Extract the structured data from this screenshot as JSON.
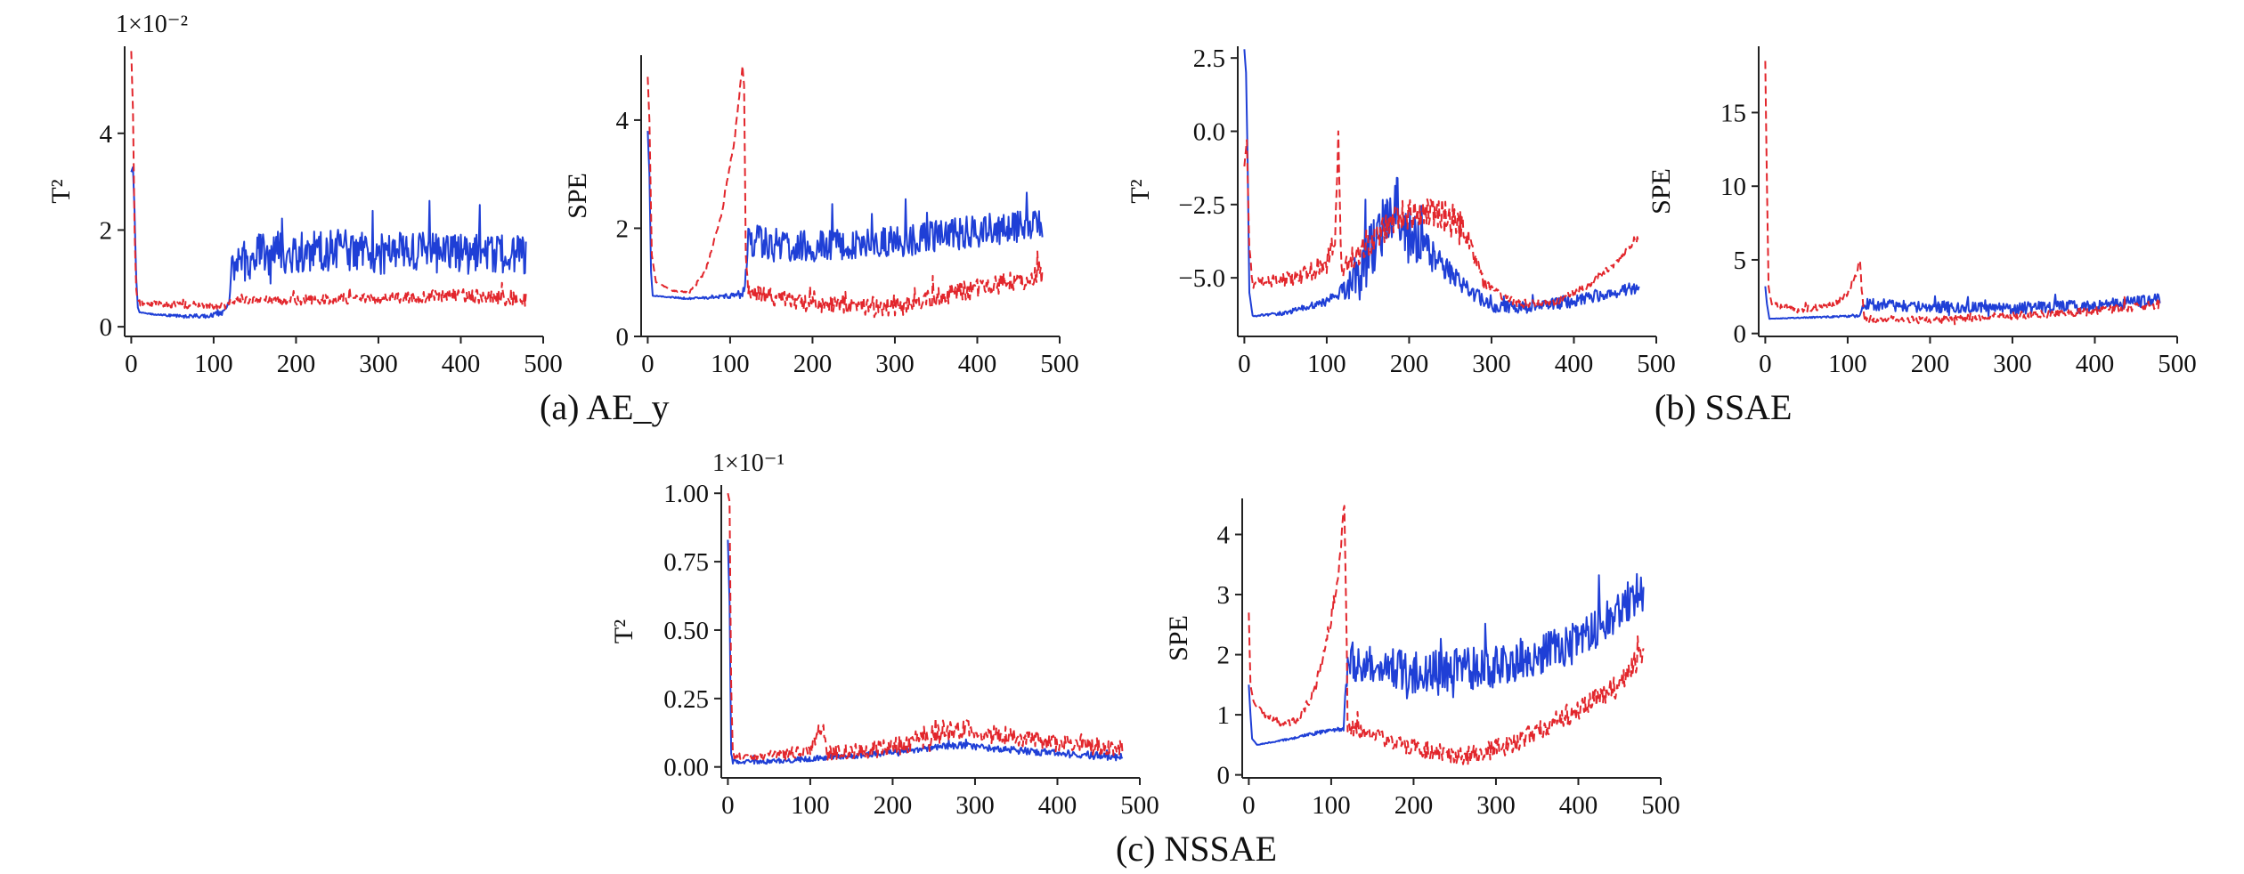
{
  "colors": {
    "normal": "#1f3fd6",
    "fault": "#e2262c",
    "axis": "#222222"
  },
  "captions": {
    "a": "(a) AE_y",
    "b": "(b) SSAE",
    "c": "(c) NSSAE"
  },
  "chart_data": [
    {
      "type": "line",
      "panel": "a",
      "ylabel": "T²",
      "multiplier": "1×10⁻²",
      "xlim": [
        -8,
        500
      ],
      "ylim": [
        -0.2,
        5.8
      ],
      "xticks": [
        0,
        100,
        200,
        300,
        400,
        500
      ],
      "yticks": [
        0,
        2,
        4
      ],
      "series": [
        {
          "style": "solid",
          "color": "normal",
          "n": 480,
          "points": [
            [
              0,
              3.2
            ],
            [
              2,
              3.3
            ],
            [
              4,
              2.4
            ],
            [
              6,
              1.0
            ],
            [
              8,
              0.4
            ],
            [
              10,
              0.3
            ],
            [
              30,
              0.25
            ],
            [
              60,
              0.22
            ],
            [
              90,
              0.22
            ],
            [
              112,
              0.3
            ],
            [
              118,
              0.5
            ],
            [
              122,
              1.2
            ],
            [
              150,
              1.5
            ],
            [
              200,
              1.55
            ],
            [
              250,
              1.6
            ],
            [
              300,
              1.5
            ],
            [
              350,
              1.55
            ],
            [
              400,
              1.5
            ],
            [
              480,
              1.5
            ]
          ],
          "noise": [
            [
              0,
              0
            ],
            [
              118,
              0.06
            ],
            [
              122,
              0.45
            ],
            [
              480,
              0.4
            ]
          ]
        },
        {
          "style": "dashed",
          "color": "fault",
          "n": 480,
          "points": [
            [
              0,
              5.7
            ],
            [
              2,
              4.5
            ],
            [
              4,
              2.0
            ],
            [
              6,
              0.8
            ],
            [
              8,
              0.5
            ],
            [
              60,
              0.45
            ],
            [
              110,
              0.45
            ],
            [
              120,
              0.55
            ],
            [
              200,
              0.55
            ],
            [
              300,
              0.6
            ],
            [
              400,
              0.65
            ],
            [
              480,
              0.55
            ]
          ],
          "noise": [
            [
              0,
              0
            ],
            [
              8,
              0.06
            ],
            [
              480,
              0.15
            ]
          ]
        }
      ]
    },
    {
      "type": "line",
      "panel": "a",
      "ylabel": "SPE",
      "xlim": [
        -8,
        500
      ],
      "ylim": [
        0,
        5.2
      ],
      "xticks": [
        0,
        100,
        200,
        300,
        400,
        500
      ],
      "yticks": [
        0,
        2,
        4
      ],
      "series": [
        {
          "style": "solid",
          "color": "normal",
          "n": 480,
          "points": [
            [
              0,
              3.8
            ],
            [
              2,
              3.0
            ],
            [
              4,
              1.2
            ],
            [
              6,
              0.75
            ],
            [
              50,
              0.7
            ],
            [
              100,
              0.75
            ],
            [
              115,
              0.75
            ],
            [
              118,
              1.0
            ],
            [
              122,
              1.8
            ],
            [
              150,
              1.7
            ],
            [
              200,
              1.65
            ],
            [
              300,
              1.75
            ],
            [
              400,
              1.95
            ],
            [
              480,
              2.1
            ]
          ],
          "noise": [
            [
              0,
              0
            ],
            [
              115,
              0.05
            ],
            [
              122,
              0.3
            ],
            [
              480,
              0.3
            ]
          ]
        },
        {
          "style": "dashed",
          "color": "fault",
          "n": 480,
          "points": [
            [
              0,
              4.8
            ],
            [
              2,
              4.0
            ],
            [
              5,
              1.5
            ],
            [
              10,
              1.0
            ],
            [
              30,
              0.85
            ],
            [
              50,
              0.8
            ],
            [
              70,
              1.2
            ],
            [
              90,
              2.3
            ],
            [
              105,
              3.6
            ],
            [
              115,
              5.0
            ],
            [
              117,
              4.6
            ],
            [
              119,
              1.5
            ],
            [
              122,
              0.8
            ],
            [
              200,
              0.6
            ],
            [
              300,
              0.55
            ],
            [
              400,
              0.9
            ],
            [
              480,
              1.1
            ]
          ],
          "noise": [
            [
              0,
              0
            ],
            [
              118,
              0.05
            ],
            [
              122,
              0.15
            ],
            [
              480,
              0.2
            ]
          ]
        }
      ]
    },
    {
      "type": "line",
      "panel": "b",
      "ylabel": "T²",
      "xlim": [
        -8,
        500
      ],
      "ylim": [
        -7.0,
        2.9
      ],
      "xticks": [
        0,
        100,
        200,
        300,
        400,
        500
      ],
      "yticks": [
        -5.0,
        -2.5,
        0,
        2.5
      ],
      "series": [
        {
          "style": "solid",
          "color": "normal",
          "n": 480,
          "points": [
            [
              0,
              2.8
            ],
            [
              2,
              2.0
            ],
            [
              4,
              -1.0
            ],
            [
              6,
              -5.5
            ],
            [
              10,
              -6.3
            ],
            [
              50,
              -6.2
            ],
            [
              100,
              -5.8
            ],
            [
              130,
              -5.2
            ],
            [
              150,
              -4.3
            ],
            [
              170,
              -3.2
            ],
            [
              185,
              -2.5
            ],
            [
              200,
              -3.6
            ],
            [
              230,
              -4.3
            ],
            [
              260,
              -5.1
            ],
            [
              300,
              -6.0
            ],
            [
              350,
              -6.0
            ],
            [
              400,
              -5.8
            ],
            [
              480,
              -5.3
            ]
          ],
          "noise": [
            [
              0,
              0
            ],
            [
              110,
              0.15
            ],
            [
              140,
              1.0
            ],
            [
              200,
              1.0
            ],
            [
              240,
              0.4
            ],
            [
              300,
              0.2
            ],
            [
              480,
              0.2
            ]
          ]
        },
        {
          "style": "dashed",
          "color": "fault",
          "n": 480,
          "points": [
            [
              0,
              -1.2
            ],
            [
              3,
              -0.3
            ],
            [
              6,
              -4.0
            ],
            [
              10,
              -5.2
            ],
            [
              60,
              -5.0
            ],
            [
              100,
              -4.5
            ],
            [
              110,
              -3.6
            ],
            [
              114,
              -0.1
            ],
            [
              118,
              -4.6
            ],
            [
              150,
              -3.8
            ],
            [
              180,
              -3.0
            ],
            [
              220,
              -2.7
            ],
            [
              250,
              -3.0
            ],
            [
              270,
              -3.5
            ],
            [
              290,
              -5.2
            ],
            [
              330,
              -5.9
            ],
            [
              380,
              -5.8
            ],
            [
              420,
              -5.2
            ],
            [
              450,
              -4.5
            ],
            [
              480,
              -3.6
            ]
          ],
          "noise": [
            [
              0,
              0
            ],
            [
              10,
              0.15
            ],
            [
              140,
              0.5
            ],
            [
              260,
              0.6
            ],
            [
              300,
              0.15
            ],
            [
              480,
              0.1
            ]
          ]
        }
      ]
    },
    {
      "type": "line",
      "panel": "b",
      "ylabel": "SPE",
      "xlim": [
        -8,
        500
      ],
      "ylim": [
        -0.2,
        19.5
      ],
      "xticks": [
        0,
        100,
        200,
        300,
        400,
        500
      ],
      "yticks": [
        0,
        5,
        10,
        15
      ],
      "series": [
        {
          "style": "solid",
          "color": "normal",
          "n": 480,
          "points": [
            [
              0,
              3.2
            ],
            [
              2,
              2.0
            ],
            [
              5,
              1.0
            ],
            [
              60,
              1.1
            ],
            [
              115,
              1.2
            ],
            [
              118,
              1.8
            ],
            [
              122,
              2.0
            ],
            [
              200,
              1.8
            ],
            [
              300,
              1.7
            ],
            [
              400,
              1.9
            ],
            [
              480,
              2.3
            ]
          ],
          "noise": [
            [
              0,
              0
            ],
            [
              118,
              0.1
            ],
            [
              122,
              0.4
            ],
            [
              480,
              0.4
            ]
          ]
        },
        {
          "style": "dashed",
          "color": "fault",
          "n": 480,
          "points": [
            [
              0,
              18.5
            ],
            [
              2,
              10.0
            ],
            [
              4,
              3.2
            ],
            [
              8,
              2.0
            ],
            [
              40,
              1.6
            ],
            [
              80,
              1.9
            ],
            [
              100,
              2.7
            ],
            [
              115,
              4.8
            ],
            [
              117,
              3.0
            ],
            [
              120,
              1.0
            ],
            [
              200,
              0.9
            ],
            [
              300,
              1.2
            ],
            [
              400,
              1.5
            ],
            [
              480,
              2.0
            ]
          ],
          "noise": [
            [
              0,
              0
            ],
            [
              10,
              0.2
            ],
            [
              480,
              0.3
            ]
          ]
        }
      ]
    },
    {
      "type": "line",
      "panel": "c",
      "ylabel": "T²",
      "multiplier": "1×10⁻¹",
      "xlim": [
        -8,
        500
      ],
      "ylim": [
        -0.04,
        1.03
      ],
      "xticks": [
        0,
        100,
        200,
        300,
        400,
        500
      ],
      "yticks": [
        0,
        0.25,
        0.5,
        0.75,
        1.0
      ],
      "series": [
        {
          "style": "solid",
          "color": "normal",
          "n": 480,
          "points": [
            [
              0,
              0.83
            ],
            [
              2,
              0.6
            ],
            [
              4,
              0.05
            ],
            [
              6,
              0.02
            ],
            [
              50,
              0.02
            ],
            [
              100,
              0.03
            ],
            [
              150,
              0.04
            ],
            [
              200,
              0.055
            ],
            [
              280,
              0.08
            ],
            [
              350,
              0.06
            ],
            [
              480,
              0.035
            ]
          ],
          "noise": [
            [
              0,
              0
            ],
            [
              6,
              0.008
            ],
            [
              480,
              0.015
            ]
          ]
        },
        {
          "style": "dashed",
          "color": "fault",
          "n": 480,
          "points": [
            [
              0,
              1.0
            ],
            [
              2,
              0.97
            ],
            [
              4,
              0.3
            ],
            [
              6,
              0.04
            ],
            [
              50,
              0.04
            ],
            [
              100,
              0.06
            ],
            [
              110,
              0.13
            ],
            [
              115,
              0.15
            ],
            [
              120,
              0.05
            ],
            [
              200,
              0.07
            ],
            [
              280,
              0.14
            ],
            [
              350,
              0.11
            ],
            [
              420,
              0.08
            ],
            [
              480,
              0.07
            ]
          ],
          "noise": [
            [
              0,
              0
            ],
            [
              6,
              0.01
            ],
            [
              250,
              0.04
            ],
            [
              480,
              0.03
            ]
          ]
        }
      ]
    },
    {
      "type": "line",
      "panel": "c",
      "ylabel": "SPE",
      "xlim": [
        -8,
        500
      ],
      "ylim": [
        -0.05,
        4.6
      ],
      "xticks": [
        0,
        100,
        200,
        300,
        400,
        500
      ],
      "yticks": [
        0,
        1,
        2,
        3,
        4
      ],
      "series": [
        {
          "style": "solid",
          "color": "normal",
          "n": 480,
          "points": [
            [
              0,
              1.5
            ],
            [
              2,
              1.0
            ],
            [
              4,
              0.6
            ],
            [
              10,
              0.5
            ],
            [
              50,
              0.6
            ],
            [
              100,
              0.75
            ],
            [
              115,
              0.75
            ],
            [
              118,
              1.6
            ],
            [
              122,
              1.9
            ],
            [
              200,
              1.7
            ],
            [
              300,
              1.8
            ],
            [
              400,
              2.2
            ],
            [
              480,
              3.1
            ]
          ],
          "noise": [
            [
              0,
              0
            ],
            [
              115,
              0.04
            ],
            [
              122,
              0.35
            ],
            [
              480,
              0.35
            ]
          ]
        },
        {
          "style": "dashed",
          "color": "fault",
          "n": 480,
          "points": [
            [
              0,
              2.7
            ],
            [
              2,
              1.5
            ],
            [
              6,
              1.2
            ],
            [
              20,
              1.0
            ],
            [
              40,
              0.85
            ],
            [
              60,
              0.9
            ],
            [
              80,
              1.4
            ],
            [
              100,
              2.6
            ],
            [
              110,
              3.5
            ],
            [
              116,
              4.5
            ],
            [
              118,
              3.0
            ],
            [
              120,
              0.8
            ],
            [
              200,
              0.45
            ],
            [
              260,
              0.3
            ],
            [
              320,
              0.5
            ],
            [
              400,
              1.1
            ],
            [
              450,
              1.5
            ],
            [
              480,
              2.1
            ]
          ],
          "noise": [
            [
              0,
              0
            ],
            [
              20,
              0.05
            ],
            [
              122,
              0.12
            ],
            [
              480,
              0.2
            ]
          ]
        }
      ]
    }
  ]
}
